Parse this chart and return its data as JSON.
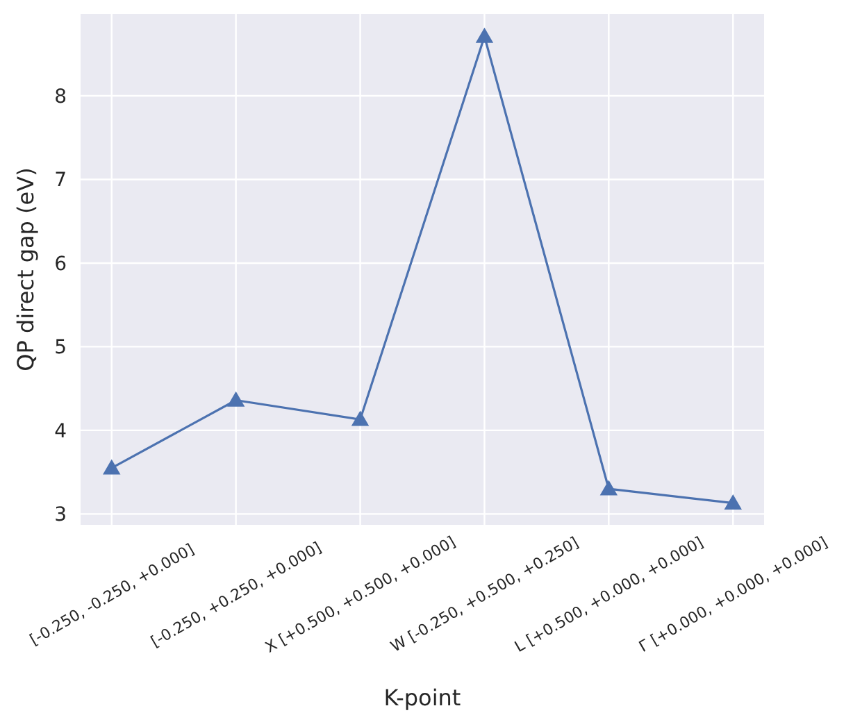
{
  "chart_data": {
    "type": "line",
    "xlabel": "K-point",
    "ylabel": "QP direct gap (eV)",
    "categories": [
      "[-0.250, -0.250, +0.000]",
      "[-0.250, +0.250, +0.000]",
      "X [+0.500, +0.500, +0.000]",
      "W [-0.250, +0.500, +0.250]",
      "L [+0.500, +0.000, +0.000]",
      "Γ [+0.000, +0.000, +0.000]"
    ],
    "series": [
      {
        "color": "#4c72b0",
        "values": [
          3.55,
          4.36,
          4.13,
          8.71,
          3.3,
          3.13
        ]
      }
    ],
    "ylim": [
      2.87,
      8.98
    ],
    "yticks": [
      3,
      4,
      5,
      6,
      7,
      8
    ],
    "grid": true,
    "marker": "triangle",
    "line_style": "solid"
  }
}
